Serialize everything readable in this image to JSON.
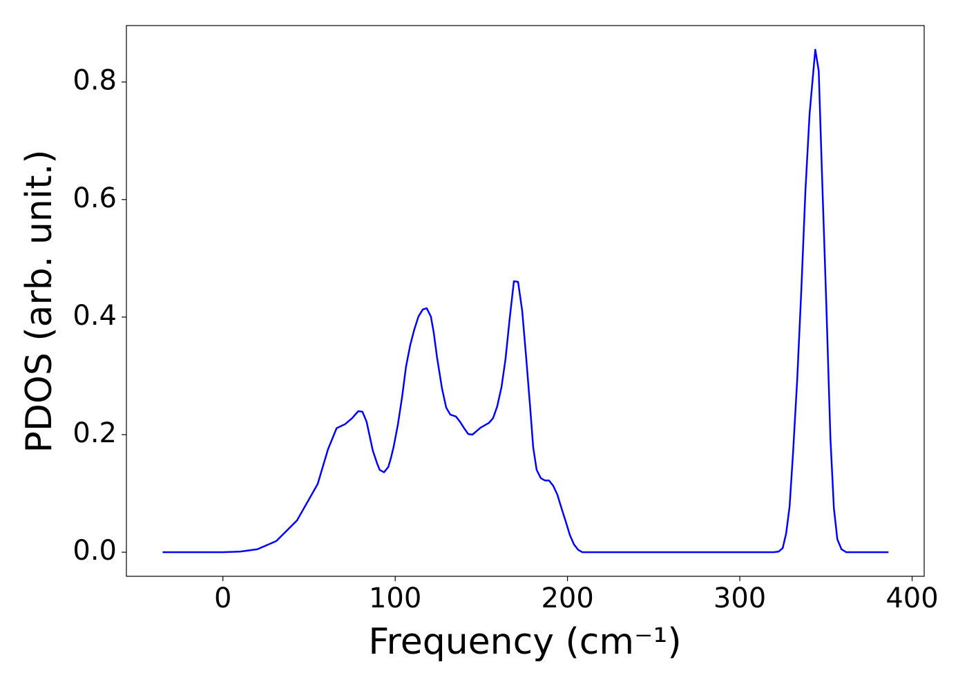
{
  "chart_data": {
    "type": "line",
    "x_label": "Frequency (cm⁻¹)",
    "y_label": "PDOS (arb. unit.)",
    "x": [
      -35,
      0,
      10,
      20,
      31,
      43,
      55,
      61,
      66,
      71,
      75,
      78.6,
      81,
      83.4,
      87,
      89.5,
      91,
      93.5,
      96,
      97.5,
      99,
      101.5,
      104,
      106.3,
      108.7,
      111,
      113.5,
      116,
      118.3,
      120.7,
      122.3,
      124.3,
      127.2,
      129.6,
      132,
      135.2,
      137.6,
      140,
      142.4,
      144.8,
      147.2,
      149.6,
      152,
      154.4,
      156.8,
      159.2,
      161.7,
      164,
      166.5,
      168.9,
      171.3,
      173.7,
      176.1,
      178.5,
      180.1,
      182.1,
      184.5,
      186.9,
      189.3,
      191.7,
      194.1,
      196.5,
      199,
      201.4,
      203.8,
      206.2,
      208.6,
      211.4,
      319.7,
      322.5,
      324.9,
      326.9,
      328.9,
      330.9,
      333.3,
      335.7,
      338.1,
      340.5,
      343.8,
      345.8,
      347.8,
      350.2,
      352.6,
      354.6,
      356.6,
      359,
      361.8,
      386.3
    ],
    "values": [
      0,
      0,
      0.001,
      0.005,
      0.019,
      0.054,
      0.116,
      0.175,
      0.211,
      0.218,
      0.228,
      0.24,
      0.239,
      0.222,
      0.173,
      0.151,
      0.14,
      0.136,
      0.145,
      0.16,
      0.178,
      0.216,
      0.264,
      0.316,
      0.352,
      0.378,
      0.401,
      0.413,
      0.415,
      0.401,
      0.375,
      0.331,
      0.278,
      0.246,
      0.234,
      0.231,
      0.222,
      0.211,
      0.201,
      0.2,
      0.206,
      0.212,
      0.216,
      0.22,
      0.228,
      0.248,
      0.281,
      0.328,
      0.399,
      0.461,
      0.46,
      0.411,
      0.328,
      0.24,
      0.178,
      0.14,
      0.126,
      0.122,
      0.122,
      0.113,
      0.098,
      0.075,
      0.052,
      0.029,
      0.013,
      0.004,
      0,
      0,
      0,
      0.001,
      0.007,
      0.032,
      0.078,
      0.169,
      0.293,
      0.446,
      0.616,
      0.746,
      0.855,
      0.819,
      0.634,
      0.422,
      0.193,
      0.075,
      0.022,
      0.005,
      0,
      0
    ],
    "color": "#0000ff",
    "xlim": [
      -56,
      407
    ],
    "ylim": [
      -0.041,
      0.896
    ],
    "xticks": [
      0,
      100,
      200,
      300,
      400
    ],
    "yticks": [
      {
        "value": 0,
        "label": "0.0"
      },
      0.2,
      0.4,
      0.6,
      0.8
    ],
    "grid": false
  }
}
